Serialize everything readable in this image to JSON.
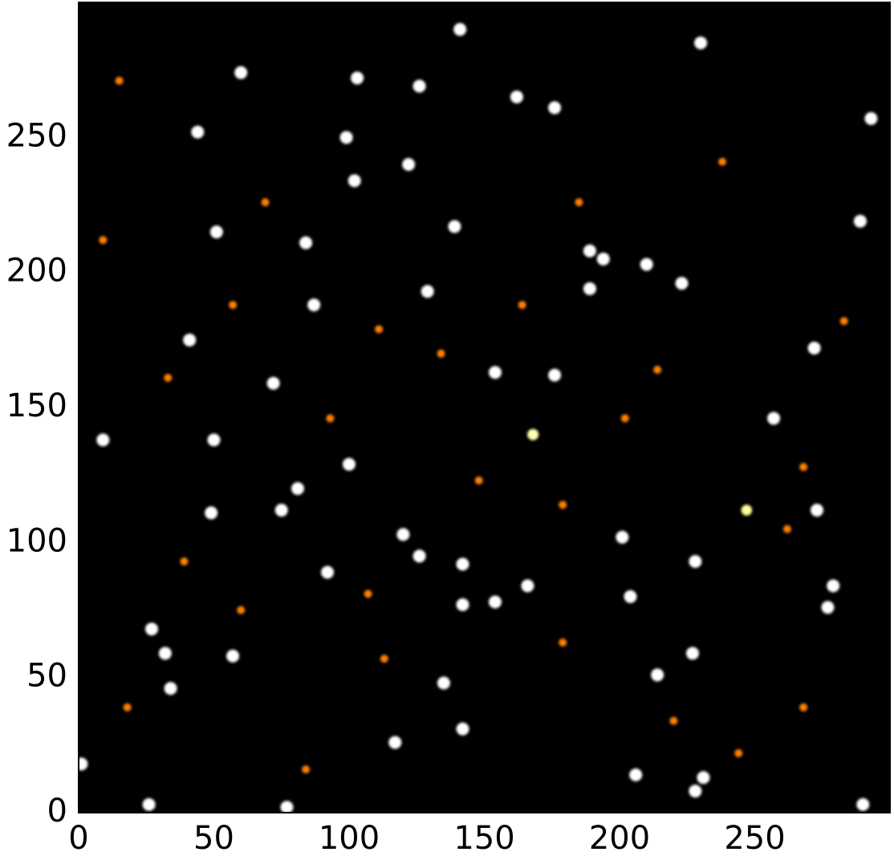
{
  "chart_data": {
    "type": "image",
    "colormap": "afmhot",
    "xlim": [
      0,
      300
    ],
    "ylim": [
      0,
      300
    ],
    "xticks": [
      0,
      50,
      100,
      150,
      200,
      250
    ],
    "yticks": [
      0,
      50,
      100,
      150,
      200,
      250
    ],
    "spots": {
      "x": [
        230,
        293,
        99,
        102,
        122,
        139,
        129,
        189,
        223,
        87,
        41,
        72,
        154,
        176,
        257,
        50,
        9,
        100,
        81,
        75,
        49,
        120,
        201,
        273,
        228,
        126,
        142,
        92,
        204,
        142,
        154,
        166,
        279,
        277,
        27,
        32,
        57,
        227,
        214,
        135,
        34,
        117,
        142,
        206,
        228,
        231,
        26,
        77,
        290,
        1,
        162,
        176,
        103,
        126,
        44,
        60,
        51,
        141,
        84,
        189,
        194,
        210,
        289,
        247,
        168,
        272,
        18,
        60,
        107,
        179,
        262,
        214,
        148,
        69,
        33,
        268,
        244,
        9,
        134,
        111,
        202,
        238,
        283,
        164,
        39,
        84,
        113,
        179,
        220,
        268,
        15,
        185,
        93,
        57
      ],
      "y": [
        285,
        257,
        250,
        234,
        240,
        217,
        193,
        194,
        196,
        188,
        175,
        159,
        163,
        162,
        146,
        138,
        138,
        129,
        120,
        112,
        111,
        103,
        102,
        112,
        93,
        95,
        92,
        89,
        80,
        77,
        78,
        84,
        84,
        76,
        68,
        59,
        58,
        59,
        51,
        48,
        46,
        26,
        31,
        14,
        8,
        13,
        3,
        2,
        3,
        18,
        265,
        261,
        272,
        269,
        252,
        274,
        215,
        290,
        211,
        208,
        205,
        203,
        219,
        112,
        140,
        172,
        39,
        75,
        81,
        114,
        105,
        164,
        123,
        226,
        161,
        39,
        22,
        212,
        170,
        179,
        146,
        241,
        182,
        188,
        93,
        16,
        57,
        63,
        34,
        128,
        271,
        226,
        146,
        188
      ],
      "values": [
        1,
        1,
        1,
        1,
        1,
        1,
        1,
        1,
        1,
        1,
        1,
        1,
        1,
        1,
        1,
        1,
        1,
        1,
        1,
        1,
        1,
        1,
        1,
        1,
        1,
        1,
        1,
        1,
        1,
        1,
        1,
        1,
        1,
        1,
        1,
        1,
        1,
        1,
        1,
        1,
        1,
        1,
        1,
        1,
        1,
        1,
        1,
        1,
        1,
        1,
        1,
        1,
        1,
        1,
        1,
        1,
        1,
        1,
        1,
        1,
        1,
        1,
        1,
        0.8,
        0.85,
        1,
        0.5,
        0.5,
        0.5,
        0.5,
        0.5,
        0.5,
        0.5,
        0.5,
        0.5,
        0.5,
        0.5,
        0.5,
        0.5,
        0.5,
        0.5,
        0.5,
        0.5,
        0.5,
        0.5,
        0.5,
        0.5,
        0.5,
        0.5,
        0.5,
        0.5,
        0.5,
        0.5,
        0.5
      ]
    }
  }
}
